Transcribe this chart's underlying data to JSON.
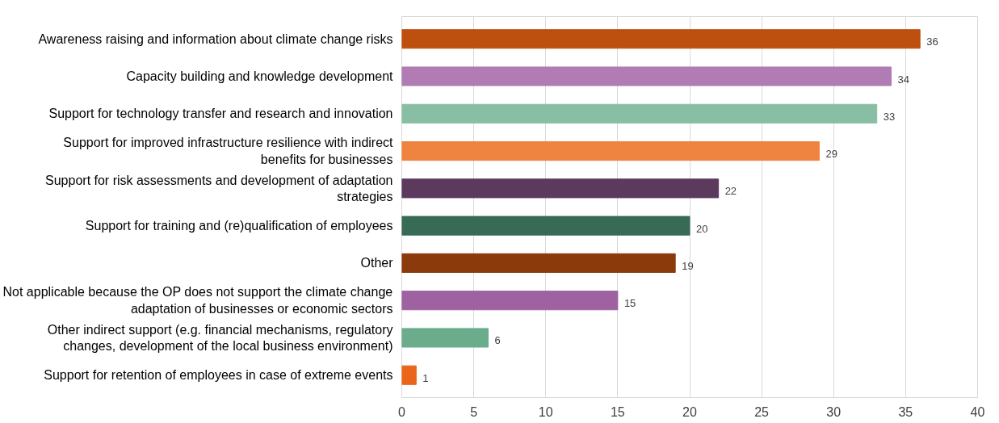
{
  "chart_data": {
    "type": "bar",
    "orientation": "horizontal",
    "categories": [
      "Awareness raising and information about climate change risks",
      "Capacity building and knowledge development",
      "Support for technology transfer and research and innovation",
      "Support for improved infrastructure resilience with indirect benefits for businesses",
      "Support for risk assessments and development of adaptation strategies",
      "Support for training and (re)qualification of employees",
      "Other",
      "Not applicable because the OP does not support the climate change adaptation of businesses or economic sectors",
      "Other indirect support (e.g. financial mechanisms, regulatory changes, development of the local business environment)",
      "Support for retention of employees in case of extreme events"
    ],
    "values": [
      36,
      34,
      33,
      29,
      22,
      20,
      19,
      15,
      6,
      1
    ],
    "colors": [
      "#bd4f0f",
      "#b07cb3",
      "#88bfa4",
      "#ef8340",
      "#5b3a5d",
      "#386b55",
      "#8b3a0c",
      "#9e62a0",
      "#6aac8c",
      "#e9661a"
    ],
    "xlim": [
      0,
      40
    ],
    "xticks": [
      0,
      5,
      10,
      15,
      20,
      25,
      30,
      35,
      40
    ],
    "grid": "x",
    "data_labels": true
  }
}
